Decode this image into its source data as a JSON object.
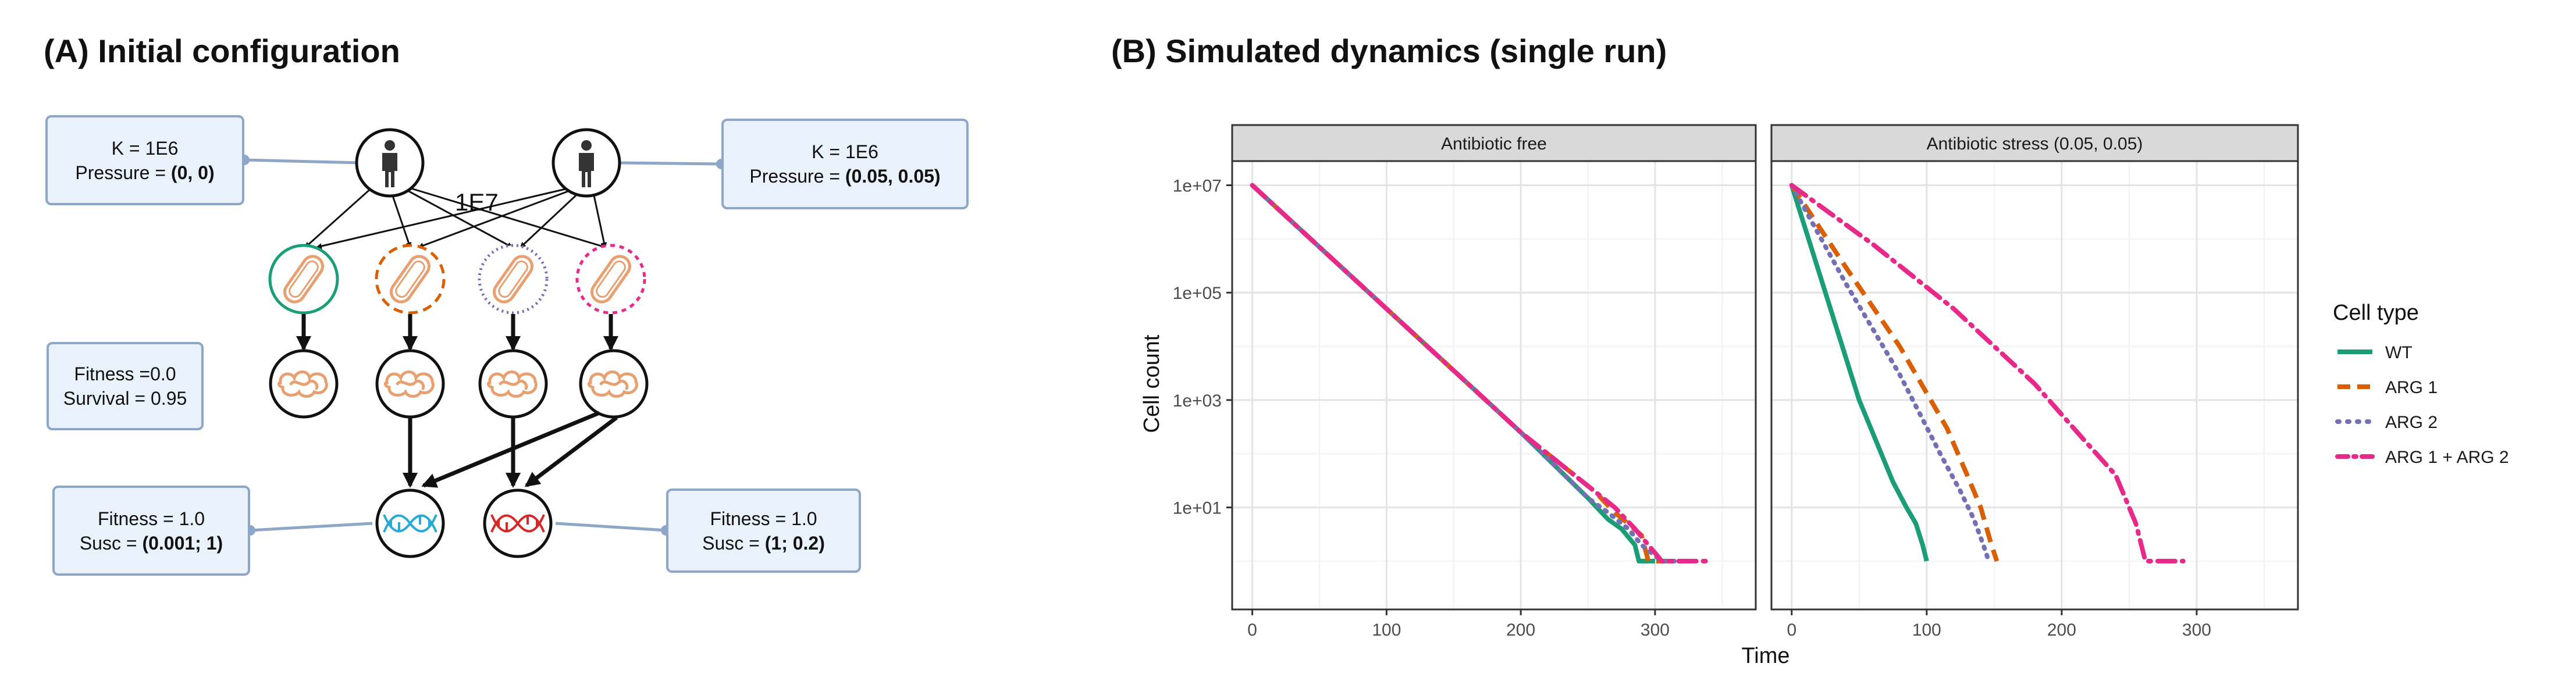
{
  "panel_a": {
    "title": "(A) Initial configuration",
    "host_left": {
      "k_line": "K = 1E6",
      "pressure_prefix": "Pressure = ",
      "pressure_value": "(0, 0)"
    },
    "host_right": {
      "k_line": "K = 1E6",
      "pressure_prefix": "Pressure = ",
      "pressure_value": "(0.05, 0.05)"
    },
    "migration_label": "1E7",
    "fitness_box": {
      "fitness_line": "Fitness =0.0",
      "survival_line": "Survival = 0.95"
    },
    "plasmid_left": {
      "fitness_line": "Fitness = 1.0",
      "susc_prefix": "Susc = ",
      "susc_value": "(0.001; 1)"
    },
    "plasmid_right": {
      "fitness_line": "Fitness = 1.0",
      "susc_prefix": "Susc = ",
      "susc_value": "(1; 0.2)"
    },
    "colors": {
      "wt": "#1b9e77",
      "arg1": "#d95f02",
      "arg2": "#7570b3",
      "arg12": "#e7298a",
      "bacterium": "#e8a070",
      "box_fill": "#e9f1fb",
      "box_border": "#8ea6c8",
      "dna_left": "#29a9d6",
      "dna_right": "#d62828"
    },
    "icons": [
      "person-icon",
      "bacterium-icon",
      "chromosome-icon",
      "dna-icon"
    ]
  },
  "panel_b": {
    "title": "(B) Simulated dynamics (single run)"
  },
  "chart_data": {
    "type": "line",
    "x_label": "Time",
    "y_label": "Cell count",
    "y_scale": "log10",
    "x_ticks": [
      0,
      100,
      200,
      300
    ],
    "y_ticks": [
      "1e+01",
      "1e+03",
      "1e+05",
      "1e+07"
    ],
    "x_range": [
      -15,
      375
    ],
    "y_range_log10": [
      -0.9,
      7.45
    ],
    "grid": true,
    "legend_title": "Cell type",
    "legend_position": "right",
    "legend": [
      {
        "label": "WT",
        "color": "#1b9e77",
        "dash": "solid"
      },
      {
        "label": "ARG 1",
        "color": "#d95f02",
        "dash": "dashed"
      },
      {
        "label": "ARG 2",
        "color": "#7570b3",
        "dash": "dotted"
      },
      {
        "label": "ARG 1 + ARG 2",
        "color": "#e7298a",
        "dash": "dotdash"
      }
    ],
    "facets": [
      {
        "title": "Antibiotic free",
        "series": [
          {
            "name": "WT",
            "x": [
              0,
              100,
              200,
              250,
              265,
              275,
              285,
              288,
              300
            ],
            "y": [
              10000000,
              50000,
              250,
              15,
              6,
              4,
              2,
              1,
              1
            ]
          },
          {
            "name": "ARG 1",
            "x": [
              0,
              100,
              200,
              255,
              270,
              280,
              290,
              295,
              310
            ],
            "y": [
              10000000,
              50000,
              250,
              20,
              8,
              5,
              3,
              1,
              1
            ]
          },
          {
            "name": "ARG 2",
            "x": [
              0,
              100,
              200,
              250,
              265,
              280,
              290,
              305,
              320
            ],
            "y": [
              10000000,
              50000,
              250,
              15,
              8,
              4,
              2,
              1,
              1
            ]
          },
          {
            "name": "ARG 1 + ARG 2",
            "x": [
              0,
              100,
              200,
              255,
              270,
              285,
              295,
              305,
              340
            ],
            "y": [
              10000000,
              50000,
              250,
              20,
              10,
              4,
              2,
              1,
              1
            ]
          }
        ]
      },
      {
        "title": "Antibiotic stress (0.05, 0.05)",
        "series": [
          {
            "name": "WT",
            "x": [
              0,
              25,
              50,
              75,
              85,
              92,
              97,
              100
            ],
            "y": [
              10000000,
              100000,
              1000,
              30,
              10,
              5,
              2,
              1
            ]
          },
          {
            "name": "ARG 1",
            "x": [
              0,
              40,
              80,
              115,
              130,
              140,
              148,
              152
            ],
            "y": [
              10000000,
              300000,
              10000,
              300,
              40,
              10,
              2,
              1
            ]
          },
          {
            "name": "ARG 2",
            "x": [
              0,
              40,
              80,
              110,
              125,
              135,
              142,
              146
            ],
            "y": [
              10000000,
              150000,
              3000,
              100,
              20,
              6,
              2,
              1
            ]
          },
          {
            "name": "ARG 1 + ARG 2",
            "x": [
              0,
              60,
              120,
              180,
              215,
              240,
              255,
              262,
              290
            ],
            "y": [
              10000000,
              800000,
              50000,
              2000,
              200,
              40,
              5,
              1,
              1
            ]
          }
        ]
      }
    ]
  }
}
